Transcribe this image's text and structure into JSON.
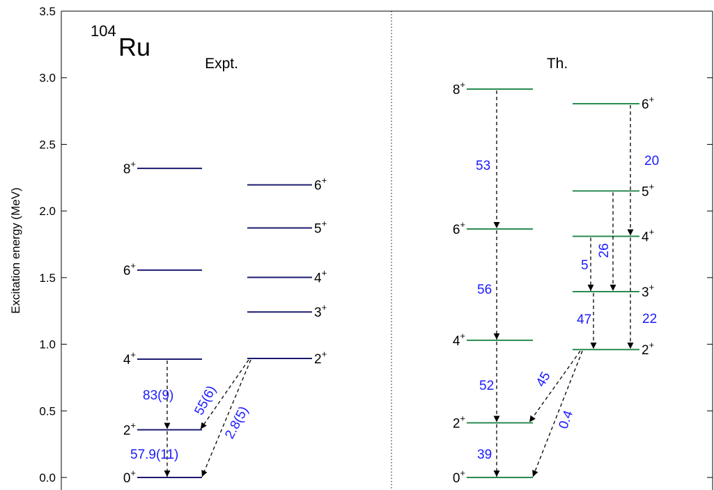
{
  "chart_data": {
    "type": "level_scheme",
    "nucleus_mass": "104",
    "nucleus_symbol": "Ru",
    "ylabel": "Excitation energy (MeV)",
    "ylim": [
      0,
      3.5
    ],
    "yticks": [
      {
        "value": 0,
        "label": "0.0"
      },
      {
        "value": 0.5,
        "label": "0.5"
      },
      {
        "value": 1,
        "label": "1.0"
      },
      {
        "value": 1.5,
        "label": "1.5"
      },
      {
        "value": 2,
        "label": "2.0"
      },
      {
        "value": 2.5,
        "label": "2.5"
      },
      {
        "value": 3,
        "label": "3.0"
      },
      {
        "value": 3.5,
        "label": "3.5"
      }
    ],
    "label_color": "#1a1aff",
    "panels": [
      {
        "name": "Expt.",
        "color": "#1a1a6e",
        "bands": [
          {
            "levels": [
              {
                "spin": "0",
                "parity": "+",
                "energy": 0
              },
              {
                "spin": "2",
                "parity": "+",
                "energy": 0.358
              },
              {
                "spin": "4",
                "parity": "+",
                "energy": 0.888
              },
              {
                "spin": "6",
                "parity": "+",
                "energy": 1.556
              },
              {
                "spin": "8",
                "parity": "+",
                "energy": 2.32
              }
            ]
          },
          {
            "levels": [
              {
                "spin": "2",
                "parity": "+",
                "energy": 0.893
              },
              {
                "spin": "3",
                "parity": "+",
                "energy": 1.242
              },
              {
                "spin": "4",
                "parity": "+",
                "energy": 1.502
              },
              {
                "spin": "5",
                "parity": "+",
                "energy": 1.873
              },
              {
                "spin": "6",
                "parity": "+",
                "energy": 2.196
              }
            ]
          }
        ],
        "transitions": [
          {
            "from": [
              0,
              2
            ],
            "to": [
              0,
              1
            ],
            "value": 83,
            "value_label": "83(9)"
          },
          {
            "from": [
              0,
              1
            ],
            "to": [
              0,
              0
            ],
            "value": 57.9,
            "value_label": "57.9(11)"
          },
          {
            "from": [
              1,
              0
            ],
            "to": [
              0,
              1
            ],
            "value": 55,
            "value_label": "55(6)"
          },
          {
            "from": [
              1,
              0
            ],
            "to": [
              0,
              0
            ],
            "value": 2.8,
            "value_label": "2.8(5)"
          }
        ]
      },
      {
        "name": "Th.",
        "color": "#2a8a50",
        "bands": [
          {
            "levels": [
              {
                "spin": "0",
                "parity": "+",
                "energy": 0
              },
              {
                "spin": "2",
                "parity": "+",
                "energy": 0.41
              },
              {
                "spin": "4",
                "parity": "+",
                "energy": 1.03
              },
              {
                "spin": "6",
                "parity": "+",
                "energy": 1.865
              },
              {
                "spin": "8",
                "parity": "+",
                "energy": 2.915
              }
            ]
          },
          {
            "levels": [
              {
                "spin": "2",
                "parity": "+",
                "energy": 0.96
              },
              {
                "spin": "3",
                "parity": "+",
                "energy": 1.395
              },
              {
                "spin": "4",
                "parity": "+",
                "energy": 1.81
              },
              {
                "spin": "5",
                "parity": "+",
                "energy": 2.15
              },
              {
                "spin": "6",
                "parity": "+",
                "energy": 2.805
              }
            ]
          }
        ],
        "transitions": [
          {
            "from": [
              0,
              4
            ],
            "to": [
              0,
              3
            ],
            "value": 53
          },
          {
            "from": [
              0,
              3
            ],
            "to": [
              0,
              2
            ],
            "value": 56
          },
          {
            "from": [
              0,
              2
            ],
            "to": [
              0,
              1
            ],
            "value": 52
          },
          {
            "from": [
              0,
              1
            ],
            "to": [
              0,
              0
            ],
            "value": 39
          },
          {
            "from": [
              1,
              0
            ],
            "to": [
              0,
              1
            ],
            "value": 45
          },
          {
            "from": [
              1,
              0
            ],
            "to": [
              0,
              0
            ],
            "value": 0.4
          },
          {
            "from": [
              1,
              4
            ],
            "to": [
              1,
              2
            ],
            "value": 20
          },
          {
            "from": [
              1,
              3
            ],
            "to": [
              1,
              1
            ],
            "value": 26
          },
          {
            "from": [
              1,
              2
            ],
            "to": [
              1,
              1
            ],
            "value": 5
          },
          {
            "from": [
              1,
              1
            ],
            "to": [
              1,
              0
            ],
            "value": 47
          },
          {
            "from": [
              1,
              2
            ],
            "to": [
              1,
              0
            ],
            "value": 22
          }
        ]
      }
    ]
  }
}
